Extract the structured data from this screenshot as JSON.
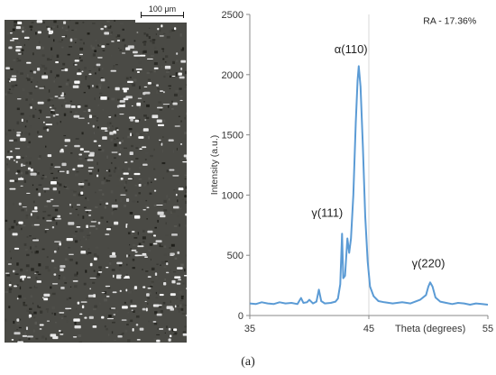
{
  "figure": {
    "caption": "(a)",
    "micrograph": {
      "scalebar_label": "100 μm"
    }
  },
  "chart_data": {
    "type": "line",
    "title": "",
    "xlabel": "Theta (degrees)",
    "ylabel": "Intensity (a.u.)",
    "xlim": [
      35,
      55
    ],
    "ylim": [
      0,
      2500
    ],
    "xticks": [
      35,
      45,
      55
    ],
    "yticks": [
      0,
      500,
      1000,
      1500,
      2000,
      2500
    ],
    "grid": "vertical at 45",
    "legend": "none",
    "series": [
      {
        "color": "#5b9bd5",
        "points": [
          [
            35.0,
            100
          ],
          [
            35.5,
            95
          ],
          [
            36.0,
            110
          ],
          [
            36.5,
            100
          ],
          [
            37.0,
            95
          ],
          [
            37.5,
            110
          ],
          [
            38.0,
            100
          ],
          [
            38.5,
            105
          ],
          [
            39.0,
            95
          ],
          [
            39.3,
            145
          ],
          [
            39.5,
            105
          ],
          [
            39.8,
            110
          ],
          [
            40.0,
            130
          ],
          [
            40.3,
            100
          ],
          [
            40.6,
            115
          ],
          [
            40.8,
            215
          ],
          [
            41.0,
            120
          ],
          [
            41.3,
            100
          ],
          [
            41.8,
            105
          ],
          [
            42.2,
            115
          ],
          [
            42.4,
            140
          ],
          [
            42.6,
            260
          ],
          [
            42.75,
            680
          ],
          [
            42.85,
            310
          ],
          [
            43.0,
            330
          ],
          [
            43.2,
            640
          ],
          [
            43.35,
            520
          ],
          [
            43.5,
            640
          ],
          [
            43.7,
            1000
          ],
          [
            43.9,
            1600
          ],
          [
            44.05,
            1950
          ],
          [
            44.15,
            2070
          ],
          [
            44.3,
            1900
          ],
          [
            44.5,
            1400
          ],
          [
            44.7,
            820
          ],
          [
            44.9,
            450
          ],
          [
            45.1,
            240
          ],
          [
            45.4,
            160
          ],
          [
            45.8,
            120
          ],
          [
            46.3,
            110
          ],
          [
            47.0,
            100
          ],
          [
            47.8,
            110
          ],
          [
            48.5,
            100
          ],
          [
            49.3,
            130
          ],
          [
            49.8,
            170
          ],
          [
            50.0,
            240
          ],
          [
            50.15,
            275
          ],
          [
            50.35,
            240
          ],
          [
            50.6,
            150
          ],
          [
            51.0,
            115
          ],
          [
            51.5,
            105
          ],
          [
            52.0,
            95
          ],
          [
            52.5,
            105
          ],
          [
            53.0,
            100
          ],
          [
            53.5,
            90
          ],
          [
            54.0,
            100
          ],
          [
            54.5,
            95
          ],
          [
            55.0,
            90
          ]
        ]
      }
    ],
    "annotations": [
      {
        "text": "RA - 17.36%",
        "x": 51.8,
        "y": 2420
      },
      {
        "text": "α(110)",
        "x": 43.5,
        "y": 2180
      },
      {
        "text": "γ(111)",
        "x": 41.5,
        "y": 820
      },
      {
        "text": "γ(220)",
        "x": 50.0,
        "y": 400
      }
    ]
  }
}
